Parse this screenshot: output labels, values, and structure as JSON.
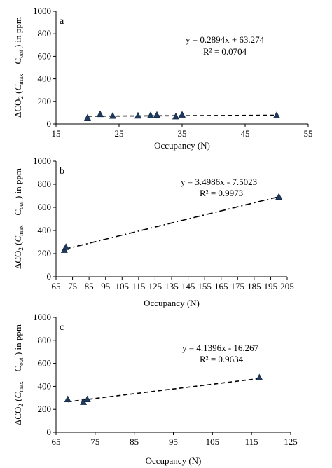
{
  "chart_data": [
    {
      "type": "scatter",
      "panel_label": "a",
      "xlabel": "Occupancy (N)",
      "ylabel_parts": [
        "ΔCO",
        "2",
        " (",
        "C",
        "max",
        " − C",
        "out",
        " ) in ppm"
      ],
      "xlim": [
        15,
        55
      ],
      "ylim": [
        0,
        1000
      ],
      "xticks": [
        15,
        25,
        35,
        45,
        55
      ],
      "yticks": [
        0,
        200,
        400,
        600,
        800,
        1000
      ],
      "equation": "y = 0.2894x + 63.274",
      "r2_label": "R² = 0.0704",
      "trendline": {
        "style": "dashed",
        "slope": 0.2894,
        "intercept": 63.274,
        "x_range": [
          20,
          50
        ]
      },
      "series": [
        {
          "x": [
            20,
            22,
            24,
            28,
            30,
            31,
            34,
            35,
            50
          ],
          "y": [
            55,
            85,
            70,
            72,
            75,
            78,
            65,
            80,
            75
          ]
        }
      ]
    },
    {
      "type": "scatter",
      "panel_label": "b",
      "xlabel": "Occupancy (N)",
      "ylabel_parts": [
        "ΔCO",
        "2",
        " (",
        "C",
        "max",
        " − C",
        "out",
        " ) in ppm"
      ],
      "xlim": [
        65,
        205
      ],
      "ylim": [
        0,
        1000
      ],
      "xticks": [
        65,
        75,
        85,
        95,
        105,
        115,
        125,
        135,
        145,
        155,
        165,
        175,
        185,
        195,
        205
      ],
      "yticks": [
        0,
        200,
        400,
        600,
        800,
        1000
      ],
      "equation": "y = 3.4986x - 7.5023",
      "r2_label": "R² = 0.9973",
      "trendline": {
        "style": "dash-dot",
        "slope": 3.4986,
        "intercept": -7.5023,
        "x_range": [
          70,
          200
        ]
      },
      "series": [
        {
          "x": [
            70,
            71,
            200
          ],
          "y": [
            230,
            255,
            690
          ]
        }
      ]
    },
    {
      "type": "scatter",
      "panel_label": "c",
      "xlabel": "Occupancy (N)",
      "ylabel_parts": [
        "ΔCO",
        "2",
        " (",
        "C",
        "max",
        " − C",
        "out",
        " ) in ppm"
      ],
      "xlim": [
        65,
        125
      ],
      "ylim": [
        0,
        1000
      ],
      "xticks": [
        65,
        75,
        85,
        95,
        105,
        115,
        125
      ],
      "yticks": [
        0,
        200,
        400,
        600,
        800,
        1000
      ],
      "equation": "y = 4.1396x - 16.267",
      "r2_label": "R² = 0.9634",
      "trendline": {
        "style": "dashed",
        "slope": 4.1396,
        "intercept": -16.267,
        "x_range": [
          68,
          117
        ]
      },
      "series": [
        {
          "x": [
            68,
            72,
            73,
            117
          ],
          "y": [
            285,
            262,
            285,
            475
          ]
        }
      ]
    }
  ]
}
